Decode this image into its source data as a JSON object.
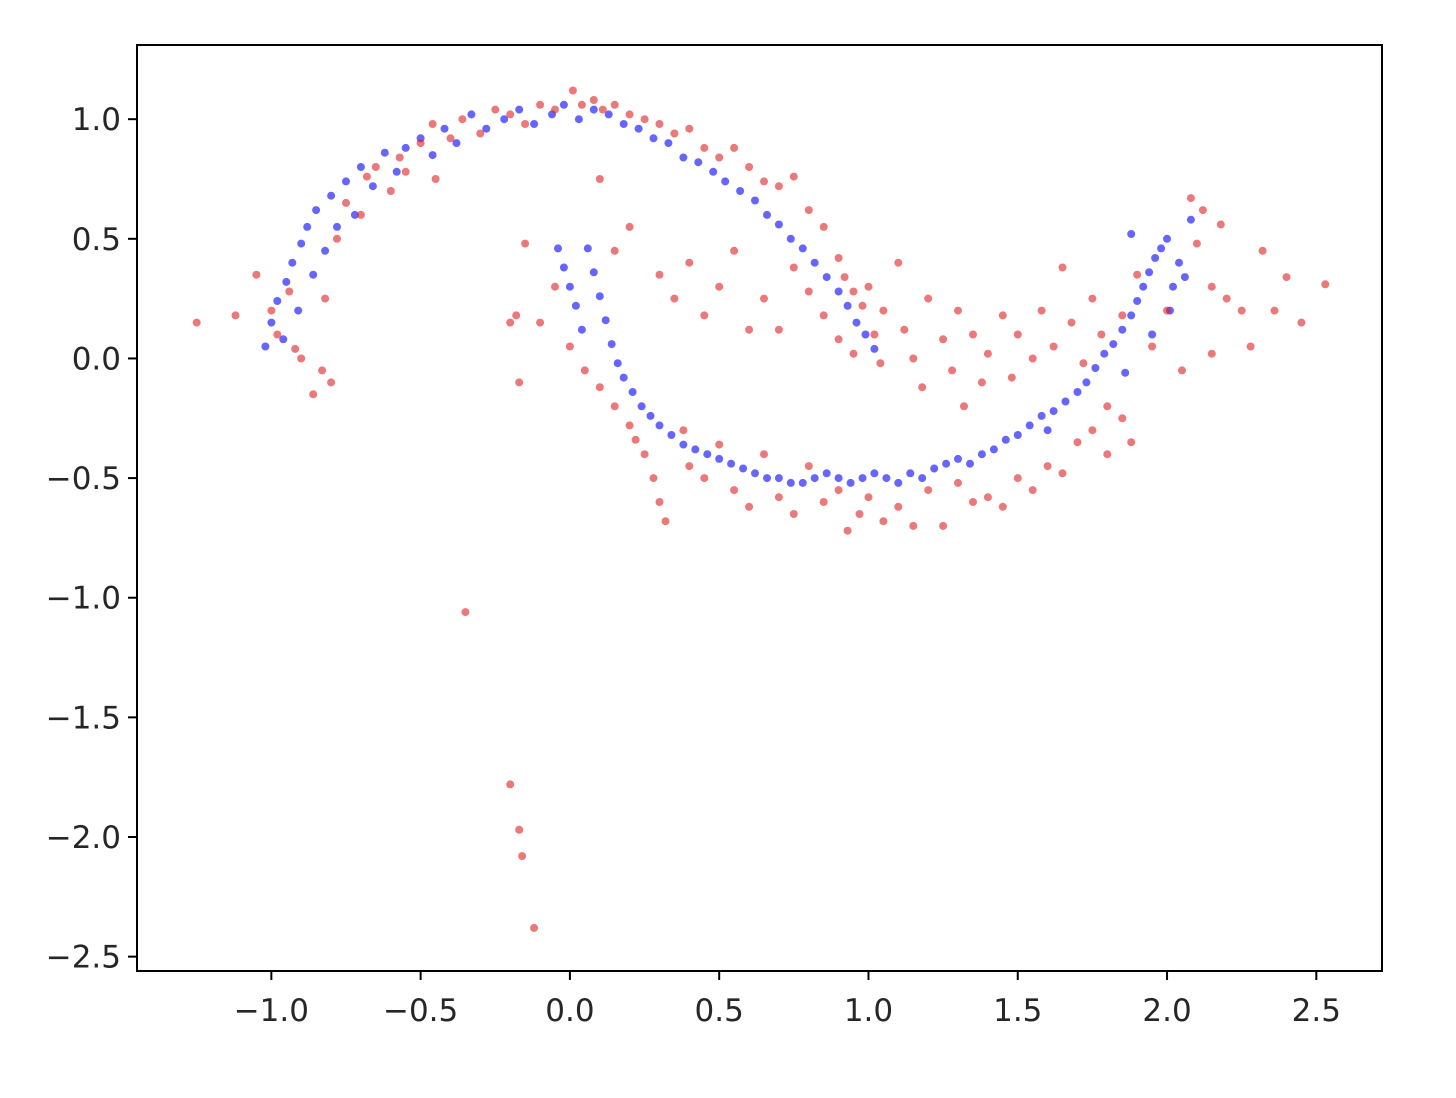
{
  "chart_data": {
    "type": "scatter",
    "title": "",
    "xlabel": "",
    "ylabel": "",
    "xlim": [
      -1.45,
      2.72
    ],
    "ylim": [
      -2.56,
      1.31
    ],
    "grid": false,
    "legend": "none",
    "x_ticks": [
      -1.0,
      -0.5,
      0.0,
      0.5,
      1.0,
      1.5,
      2.0,
      2.5
    ],
    "x_tick_labels": [
      "−1.0",
      "−0.5",
      "0.0",
      "0.5",
      "1.0",
      "1.5",
      "2.0",
      "2.5"
    ],
    "y_ticks": [
      1.0,
      0.5,
      0.0,
      -0.5,
      -1.0,
      -1.5,
      -2.0,
      -2.5
    ],
    "y_tick_labels": [
      "1.0",
      "0.5",
      "0.0",
      "−0.5",
      "−1.0",
      "−1.5",
      "−2.0",
      "−2.5"
    ],
    "series": [
      {
        "color": "#0000ff",
        "points": [
          [
            -1.02,
            0.05
          ],
          [
            -1.0,
            0.15
          ],
          [
            -0.98,
            0.24
          ],
          [
            -0.96,
            0.08
          ],
          [
            -0.95,
            0.32
          ],
          [
            -0.93,
            0.4
          ],
          [
            -0.91,
            0.2
          ],
          [
            -0.9,
            0.48
          ],
          [
            -0.88,
            0.55
          ],
          [
            -0.86,
            0.35
          ],
          [
            -0.85,
            0.62
          ],
          [
            -0.82,
            0.45
          ],
          [
            -0.8,
            0.68
          ],
          [
            -0.78,
            0.55
          ],
          [
            -0.75,
            0.74
          ],
          [
            -0.72,
            0.6
          ],
          [
            -0.7,
            0.8
          ],
          [
            -0.66,
            0.72
          ],
          [
            -0.62,
            0.86
          ],
          [
            -0.58,
            0.78
          ],
          [
            -0.55,
            0.88
          ],
          [
            -0.5,
            0.92
          ],
          [
            -0.46,
            0.85
          ],
          [
            -0.42,
            0.96
          ],
          [
            -0.38,
            0.9
          ],
          [
            -0.33,
            1.02
          ],
          [
            -0.28,
            0.96
          ],
          [
            -0.22,
            1.0
          ],
          [
            -0.17,
            1.04
          ],
          [
            -0.12,
            0.98
          ],
          [
            -0.06,
            1.02
          ],
          [
            -0.02,
            1.06
          ],
          [
            0.03,
            1.0
          ],
          [
            0.08,
            1.04
          ],
          [
            0.13,
            1.02
          ],
          [
            0.18,
            0.98
          ],
          [
            0.23,
            0.96
          ],
          [
            0.28,
            0.92
          ],
          [
            0.33,
            0.9
          ],
          [
            0.38,
            0.84
          ],
          [
            0.43,
            0.82
          ],
          [
            0.48,
            0.78
          ],
          [
            0.52,
            0.74
          ],
          [
            0.57,
            0.7
          ],
          [
            0.62,
            0.66
          ],
          [
            0.66,
            0.6
          ],
          [
            0.7,
            0.56
          ],
          [
            0.74,
            0.5
          ],
          [
            0.78,
            0.46
          ],
          [
            0.82,
            0.4
          ],
          [
            0.86,
            0.34
          ],
          [
            0.9,
            0.28
          ],
          [
            0.93,
            0.22
          ],
          [
            0.96,
            0.15
          ],
          [
            0.99,
            0.1
          ],
          [
            1.02,
            0.04
          ],
          [
            -0.04,
            0.46
          ],
          [
            -0.02,
            0.38
          ],
          [
            0.0,
            0.3
          ],
          [
            0.02,
            0.22
          ],
          [
            0.04,
            0.12
          ],
          [
            0.06,
            0.46
          ],
          [
            0.08,
            0.36
          ],
          [
            0.1,
            0.26
          ],
          [
            0.12,
            0.16
          ],
          [
            0.14,
            0.06
          ],
          [
            0.16,
            -0.02
          ],
          [
            0.18,
            -0.08
          ],
          [
            0.21,
            -0.14
          ],
          [
            0.24,
            -0.2
          ],
          [
            0.27,
            -0.24
          ],
          [
            0.3,
            -0.28
          ],
          [
            0.34,
            -0.32
          ],
          [
            0.38,
            -0.36
          ],
          [
            0.42,
            -0.38
          ],
          [
            0.46,
            -0.4
          ],
          [
            0.5,
            -0.42
          ],
          [
            0.54,
            -0.44
          ],
          [
            0.58,
            -0.46
          ],
          [
            0.62,
            -0.48
          ],
          [
            0.66,
            -0.5
          ],
          [
            0.7,
            -0.5
          ],
          [
            0.74,
            -0.52
          ],
          [
            0.78,
            -0.52
          ],
          [
            0.82,
            -0.5
          ],
          [
            0.86,
            -0.48
          ],
          [
            0.9,
            -0.5
          ],
          [
            0.94,
            -0.52
          ],
          [
            0.98,
            -0.5
          ],
          [
            1.02,
            -0.48
          ],
          [
            1.06,
            -0.5
          ],
          [
            1.1,
            -0.52
          ],
          [
            1.14,
            -0.48
          ],
          [
            1.18,
            -0.5
          ],
          [
            1.22,
            -0.46
          ],
          [
            1.26,
            -0.44
          ],
          [
            1.3,
            -0.42
          ],
          [
            1.34,
            -0.44
          ],
          [
            1.38,
            -0.4
          ],
          [
            1.42,
            -0.38
          ],
          [
            1.46,
            -0.34
          ],
          [
            1.5,
            -0.32
          ],
          [
            1.54,
            -0.28
          ],
          [
            1.58,
            -0.24
          ],
          [
            1.62,
            -0.22
          ],
          [
            1.66,
            -0.18
          ],
          [
            1.7,
            -0.14
          ],
          [
            1.73,
            -0.1
          ],
          [
            1.76,
            -0.04
          ],
          [
            1.79,
            0.02
          ],
          [
            1.82,
            0.06
          ],
          [
            1.85,
            0.12
          ],
          [
            1.88,
            0.18
          ],
          [
            1.9,
            0.24
          ],
          [
            1.92,
            0.3
          ],
          [
            1.94,
            0.36
          ],
          [
            1.96,
            0.42
          ],
          [
            1.98,
            0.46
          ],
          [
            2.0,
            0.5
          ],
          [
            2.02,
            0.3
          ],
          [
            2.04,
            0.4
          ],
          [
            2.06,
            0.34
          ],
          [
            2.08,
            0.58
          ],
          [
            1.88,
            0.52
          ],
          [
            1.95,
            0.1
          ],
          [
            2.01,
            0.2
          ],
          [
            1.86,
            -0.06
          ],
          [
            1.6,
            -0.3
          ]
        ]
      },
      {
        "color": "#e02020",
        "points": [
          [
            -1.25,
            0.15
          ],
          [
            -1.12,
            0.18
          ],
          [
            -1.05,
            0.35
          ],
          [
            -1.0,
            0.2
          ],
          [
            -0.98,
            0.1
          ],
          [
            -0.94,
            0.28
          ],
          [
            -0.92,
            0.04
          ],
          [
            -0.9,
            0.0
          ],
          [
            -0.86,
            -0.15
          ],
          [
            -0.83,
            -0.05
          ],
          [
            -0.8,
            -0.1
          ],
          [
            -0.82,
            0.25
          ],
          [
            -0.78,
            0.5
          ],
          [
            -0.75,
            0.65
          ],
          [
            -0.7,
            0.6
          ],
          [
            -0.68,
            0.76
          ],
          [
            -0.65,
            0.8
          ],
          [
            -0.6,
            0.7
          ],
          [
            -0.57,
            0.84
          ],
          [
            -0.55,
            0.78
          ],
          [
            -0.5,
            0.9
          ],
          [
            -0.46,
            0.98
          ],
          [
            -0.45,
            0.75
          ],
          [
            -0.4,
            0.92
          ],
          [
            -0.36,
            1.0
          ],
          [
            -0.3,
            0.94
          ],
          [
            -0.25,
            1.04
          ],
          [
            -0.2,
            1.02
          ],
          [
            -0.15,
            0.98
          ],
          [
            -0.1,
            1.06
          ],
          [
            -0.05,
            1.04
          ],
          [
            0.01,
            1.12
          ],
          [
            0.04,
            1.06
          ],
          [
            0.08,
            1.08
          ],
          [
            0.11,
            1.04
          ],
          [
            0.15,
            1.06
          ],
          [
            0.2,
            1.02
          ],
          [
            0.25,
            1.0
          ],
          [
            0.3,
            0.98
          ],
          [
            0.35,
            0.94
          ],
          [
            0.4,
            0.96
          ],
          [
            0.45,
            0.88
          ],
          [
            0.5,
            0.84
          ],
          [
            0.55,
            0.88
          ],
          [
            0.6,
            0.8
          ],
          [
            0.65,
            0.74
          ],
          [
            0.7,
            0.72
          ],
          [
            0.75,
            0.76
          ],
          [
            0.8,
            0.62
          ],
          [
            0.85,
            0.55
          ],
          [
            0.9,
            0.42
          ],
          [
            0.92,
            0.34
          ],
          [
            0.95,
            0.28
          ],
          [
            0.98,
            0.22
          ],
          [
            1.02,
            0.1
          ],
          [
            1.04,
            -0.02
          ],
          [
            0.1,
            0.75
          ],
          [
            0.15,
            0.45
          ],
          [
            0.2,
            0.55
          ],
          [
            0.3,
            0.35
          ],
          [
            0.35,
            0.25
          ],
          [
            0.4,
            0.4
          ],
          [
            0.45,
            0.18
          ],
          [
            0.5,
            0.3
          ],
          [
            0.55,
            0.45
          ],
          [
            0.6,
            0.12
          ],
          [
            0.65,
            0.25
          ],
          [
            0.7,
            0.12
          ],
          [
            0.75,
            0.38
          ],
          [
            0.8,
            0.28
          ],
          [
            0.85,
            0.18
          ],
          [
            0.9,
            0.08
          ],
          [
            0.95,
            0.02
          ],
          [
            1.0,
            0.3
          ],
          [
            1.05,
            0.2
          ],
          [
            1.1,
            0.4
          ],
          [
            1.12,
            0.12
          ],
          [
            1.15,
            0.0
          ],
          [
            1.18,
            -0.12
          ],
          [
            1.2,
            0.25
          ],
          [
            1.25,
            0.08
          ],
          [
            1.28,
            -0.05
          ],
          [
            1.3,
            0.2
          ],
          [
            1.32,
            -0.2
          ],
          [
            1.35,
            0.1
          ],
          [
            1.38,
            -0.1
          ],
          [
            1.4,
            0.02
          ],
          [
            1.45,
            0.18
          ],
          [
            1.48,
            -0.08
          ],
          [
            1.5,
            0.1
          ],
          [
            1.55,
            0.0
          ],
          [
            1.58,
            0.2
          ],
          [
            1.62,
            0.05
          ],
          [
            1.65,
            0.38
          ],
          [
            1.68,
            0.15
          ],
          [
            1.72,
            -0.02
          ],
          [
            1.75,
            0.25
          ],
          [
            1.78,
            0.1
          ],
          [
            1.8,
            -0.2
          ],
          [
            1.85,
            0.18
          ],
          [
            1.9,
            0.35
          ],
          [
            1.95,
            0.05
          ],
          [
            2.0,
            0.2
          ],
          [
            2.05,
            -0.05
          ],
          [
            2.1,
            0.48
          ],
          [
            2.12,
            0.62
          ],
          [
            2.15,
            0.3
          ],
          [
            2.18,
            0.56
          ],
          [
            2.2,
            0.25
          ],
          [
            2.25,
            0.2
          ],
          [
            2.28,
            0.05
          ],
          [
            2.32,
            0.45
          ],
          [
            2.36,
            0.2
          ],
          [
            2.4,
            0.34
          ],
          [
            2.45,
            0.15
          ],
          [
            2.53,
            0.31
          ],
          [
            2.08,
            0.67
          ],
          [
            2.15,
            0.02
          ],
          [
            -0.15,
            0.48
          ],
          [
            -0.18,
            0.18
          ],
          [
            -0.1,
            0.15
          ],
          [
            -0.05,
            0.3
          ],
          [
            0.0,
            0.05
          ],
          [
            0.05,
            -0.05
          ],
          [
            0.1,
            -0.12
          ],
          [
            0.15,
            -0.2
          ],
          [
            0.2,
            -0.28
          ],
          [
            0.22,
            -0.34
          ],
          [
            0.25,
            -0.4
          ],
          [
            0.28,
            -0.5
          ],
          [
            0.3,
            -0.6
          ],
          [
            0.32,
            -0.68
          ],
          [
            0.38,
            -0.3
          ],
          [
            0.4,
            -0.45
          ],
          [
            0.45,
            -0.5
          ],
          [
            0.5,
            -0.36
          ],
          [
            0.55,
            -0.55
          ],
          [
            0.6,
            -0.62
          ],
          [
            0.65,
            -0.4
          ],
          [
            0.7,
            -0.58
          ],
          [
            0.75,
            -0.65
          ],
          [
            0.8,
            -0.45
          ],
          [
            0.85,
            -0.6
          ],
          [
            0.9,
            -0.55
          ],
          [
            0.93,
            -0.72
          ],
          [
            0.97,
            -0.65
          ],
          [
            1.0,
            -0.58
          ],
          [
            1.05,
            -0.68
          ],
          [
            1.1,
            -0.62
          ],
          [
            1.15,
            -0.7
          ],
          [
            1.2,
            -0.55
          ],
          [
            1.25,
            -0.7
          ],
          [
            1.3,
            -0.52
          ],
          [
            1.35,
            -0.6
          ],
          [
            1.4,
            -0.58
          ],
          [
            1.45,
            -0.62
          ],
          [
            1.5,
            -0.5
          ],
          [
            1.55,
            -0.55
          ],
          [
            1.6,
            -0.45
          ],
          [
            1.65,
            -0.48
          ],
          [
            1.7,
            -0.35
          ],
          [
            1.75,
            -0.3
          ],
          [
            1.8,
            -0.4
          ],
          [
            1.85,
            -0.25
          ],
          [
            1.88,
            -0.35
          ],
          [
            -0.17,
            -0.1
          ],
          [
            -0.2,
            0.15
          ],
          [
            -0.35,
            -1.06
          ],
          [
            -0.2,
            -1.78
          ],
          [
            -0.17,
            -1.97
          ],
          [
            -0.16,
            -2.08
          ],
          [
            -0.12,
            -2.38
          ]
        ]
      }
    ]
  }
}
